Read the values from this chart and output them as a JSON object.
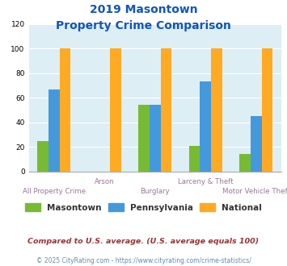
{
  "title_line1": "2019 Masontown",
  "title_line2": "Property Crime Comparison",
  "categories": [
    "All Property Crime",
    "Arson",
    "Burglary",
    "Larceny & Theft",
    "Motor Vehicle Theft"
  ],
  "masontown": [
    25,
    0,
    54,
    21,
    14
  ],
  "pennsylvania": [
    67,
    0,
    54,
    73,
    45
  ],
  "national": [
    100,
    100,
    100,
    100,
    100
  ],
  "color_masontown": "#77bb33",
  "color_pennsylvania": "#4499dd",
  "color_national": "#ffaa22",
  "ylim": [
    0,
    120
  ],
  "yticks": [
    0,
    20,
    40,
    60,
    80,
    100,
    120
  ],
  "background_color": "#ddeef5",
  "legend_labels": [
    "Masontown",
    "Pennsylvania",
    "National"
  ],
  "footnote1": "Compared to U.S. average. (U.S. average equals 100)",
  "footnote2": "© 2025 CityRating.com - https://www.cityrating.com/crime-statistics/",
  "title_color": "#1155bb",
  "xlabel_color": "#997799",
  "footnote1_color": "#993333",
  "footnote2_color": "#6688aa"
}
